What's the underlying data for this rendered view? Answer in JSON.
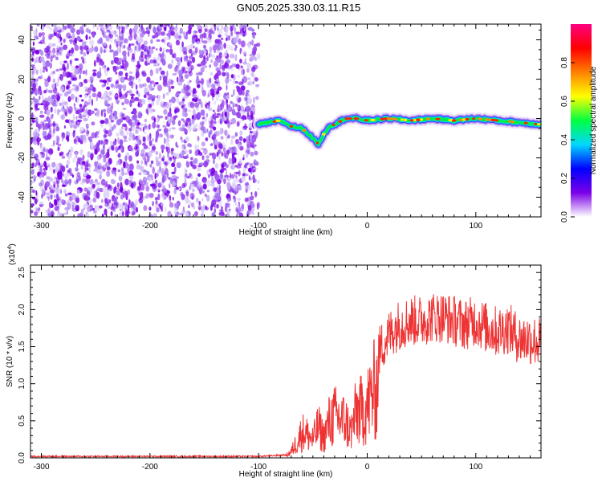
{
  "title": "GN05.2025.330.03.11.R15",
  "chart_data": [
    {
      "type": "heatmap",
      "xlabel": "Height of straight line (km)",
      "ylabel": "Frequency (Hz)",
      "xlim": [
        -310,
        160
      ],
      "ylim": [
        -50,
        48
      ],
      "xticks": [
        -300,
        -200,
        -100,
        0,
        100
      ],
      "yticks": [
        -40,
        -20,
        0,
        20,
        40
      ],
      "noise_region": [
        -310,
        -100
      ],
      "signal_track": {
        "x": [
          -100,
          -90,
          -80,
          -70,
          -60,
          -50,
          -45,
          -40,
          -35,
          -30,
          -20,
          -10,
          0,
          20,
          40,
          60,
          80,
          100,
          120,
          140,
          160
        ],
        "freq_hz": [
          -3,
          -2,
          -1,
          -4,
          -5,
          -10,
          -13,
          -8,
          -4,
          -3,
          0,
          0,
          -1,
          0,
          -1,
          0,
          -1,
          0,
          -1,
          -2,
          -3
        ]
      },
      "colorbar": {
        "label": "Normalized spectral amplitude",
        "range": [
          0,
          1
        ],
        "ticks": [
          0.0,
          0.2,
          0.4,
          0.6,
          0.8
        ],
        "colors": [
          "#ffffff",
          "#7b00e8",
          "#0000ff",
          "#00d8ff",
          "#00ff40",
          "#ffff00",
          "#ff8000",
          "#ff0000",
          "#ff0080"
        ]
      }
    },
    {
      "type": "line",
      "xlabel": "Height of straight line (km)",
      "ylabel": "SNR (10 * v/v)",
      "multiplier_label": "(x10",
      "multiplier_exp": "4",
      "xlim": [
        -310,
        160
      ],
      "ylim": [
        0,
        2.6
      ],
      "xticks": [
        -300,
        -200,
        -100,
        0,
        100
      ],
      "yticks": [
        "0.0",
        "0.5",
        "1.0",
        "1.5",
        "2.0",
        "2.5"
      ],
      "series": [
        {
          "color": "#ee3333",
          "envelope": {
            "x": [
              -310,
              -100,
              -75,
              -70,
              -65,
              -60,
              -55,
              -50,
              -45,
              -40,
              -35,
              -30,
              -25,
              -20,
              -15,
              -10,
              -5,
              0,
              5,
              10,
              15,
              20,
              25,
              30,
              40,
              50,
              60,
              70,
              80,
              90,
              100,
              110,
              120,
              130,
              140,
              150,
              160
            ],
            "y": [
              0.02,
              0.02,
              0.04,
              0.12,
              0.3,
              0.5,
              0.45,
              0.35,
              0.6,
              0.4,
              0.7,
              0.8,
              0.75,
              0.7,
              0.5,
              0.9,
              0.9,
              1.0,
              1.25,
              1.4,
              1.55,
              1.65,
              1.75,
              1.8,
              1.85,
              1.85,
              1.9,
              1.9,
              1.85,
              1.8,
              1.85,
              1.75,
              1.7,
              1.75,
              1.6,
              1.6,
              1.55
            ]
          }
        }
      ]
    }
  ]
}
